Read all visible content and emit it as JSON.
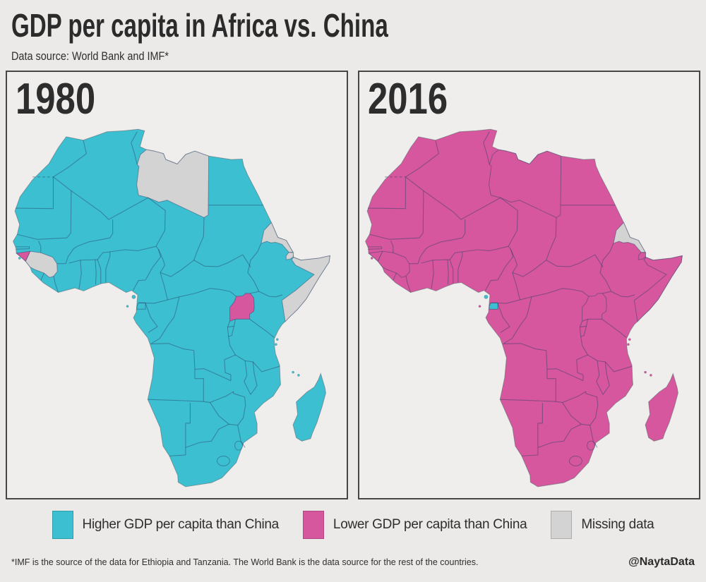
{
  "title": "GDP per capita in Africa vs. China",
  "subtitle": "Data source: World Bank and IMF*",
  "footnote": "*IMF is the source of the data for Ethiopia and Tanzania. The World Bank is the data source for the rest of the countries.",
  "credit": "@NaytaData",
  "panels": [
    {
      "year": "1980"
    },
    {
      "year": "2016"
    }
  ],
  "legend": [
    {
      "key": "higher",
      "label": "Higher GDP per capita than China"
    },
    {
      "key": "lower",
      "label": "Lower GDP per capita than China"
    },
    {
      "key": "missing",
      "label": "Missing data"
    }
  ],
  "colors": {
    "higher": "#3cc0d1",
    "lower": "#d6579d",
    "missing": "#d3d3d3",
    "page_background": "#eceae8",
    "panel_background": "#efeeec",
    "panel_border": "#474747",
    "text": "#2b2b2b"
  },
  "chart_data": {
    "type": "choropleth-map",
    "title": "GDP per capita in Africa vs. China",
    "region": "Africa",
    "categories": [
      "higher",
      "lower",
      "missing"
    ],
    "years": {
      "1980": {
        "default": "higher",
        "exceptions": {
          "Libya": "missing",
          "Guinea": "missing",
          "Guinea-Bissau": "lower",
          "Uganda": "lower",
          "Somalia": "missing",
          "Djibouti": "missing",
          "Eritrea": "missing"
        }
      },
      "2016": {
        "default": "lower",
        "exceptions": {
          "Equatorial Guinea": "higher",
          "Eritrea": "missing"
        }
      }
    }
  }
}
